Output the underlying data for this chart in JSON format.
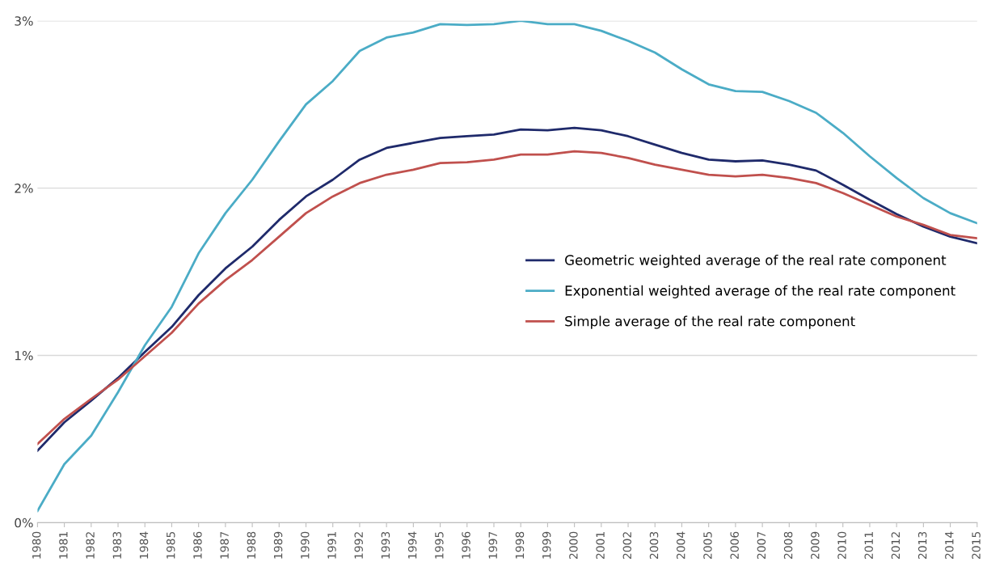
{
  "chart_data": {
    "type": "line",
    "categories": [
      "1980",
      "1981",
      "1982",
      "1983",
      "1984",
      "1985",
      "1986",
      "1987",
      "1988",
      "1989",
      "1990",
      "1991",
      "1992",
      "1993",
      "1994",
      "1995",
      "1996",
      "1997",
      "1998",
      "1999",
      "2000",
      "2001",
      "2002",
      "2003",
      "2004",
      "2005",
      "2006",
      "2007",
      "2008",
      "2009",
      "2010",
      "2011",
      "2012",
      "2013",
      "2014",
      "2015"
    ],
    "ylim": [
      0,
      3
    ],
    "yticks": [
      {
        "value": 0,
        "label": "0%"
      },
      {
        "value": 1,
        "label": "1%"
      },
      {
        "value": 2,
        "label": "2%"
      },
      {
        "value": 3,
        "label": "3%"
      }
    ],
    "grid": "y",
    "legend": "right",
    "marker": "none",
    "line_style": "solid",
    "series": [
      {
        "name": "Geometric weighted average of the real rate component",
        "color": "#1f2a6b",
        "values": [
          0.43,
          0.6,
          0.73,
          0.865,
          1.02,
          1.17,
          1.36,
          1.52,
          1.65,
          1.81,
          1.95,
          2.05,
          2.17,
          2.24,
          2.27,
          2.3,
          2.31,
          2.32,
          2.35,
          2.345,
          2.36,
          2.345,
          2.31,
          2.26,
          2.21,
          2.17,
          2.16,
          2.165,
          2.14,
          2.105,
          2.02,
          1.93,
          1.845,
          1.77,
          1.71,
          1.67
        ]
      },
      {
        "name": "Exponential weighted average of the real rate component",
        "color": "#4bacc6",
        "values": [
          0.07,
          0.35,
          0.52,
          0.78,
          1.06,
          1.29,
          1.61,
          1.85,
          2.05,
          2.28,
          2.5,
          2.64,
          2.82,
          2.9,
          2.93,
          2.98,
          2.975,
          2.98,
          3.0,
          2.98,
          2.98,
          2.94,
          2.88,
          2.81,
          2.71,
          2.62,
          2.58,
          2.575,
          2.52,
          2.45,
          2.33,
          2.19,
          2.06,
          1.94,
          1.85,
          1.79
        ]
      },
      {
        "name": "Simple average of the real rate component",
        "color": "#c0504d",
        "values": [
          0.47,
          0.62,
          0.74,
          0.855,
          0.995,
          1.135,
          1.31,
          1.45,
          1.57,
          1.71,
          1.85,
          1.95,
          2.03,
          2.08,
          2.11,
          2.15,
          2.155,
          2.17,
          2.2,
          2.2,
          2.22,
          2.21,
          2.18,
          2.14,
          2.11,
          2.08,
          2.07,
          2.08,
          2.06,
          2.03,
          1.97,
          1.9,
          1.83,
          1.78,
          1.72,
          1.7
        ]
      }
    ]
  }
}
